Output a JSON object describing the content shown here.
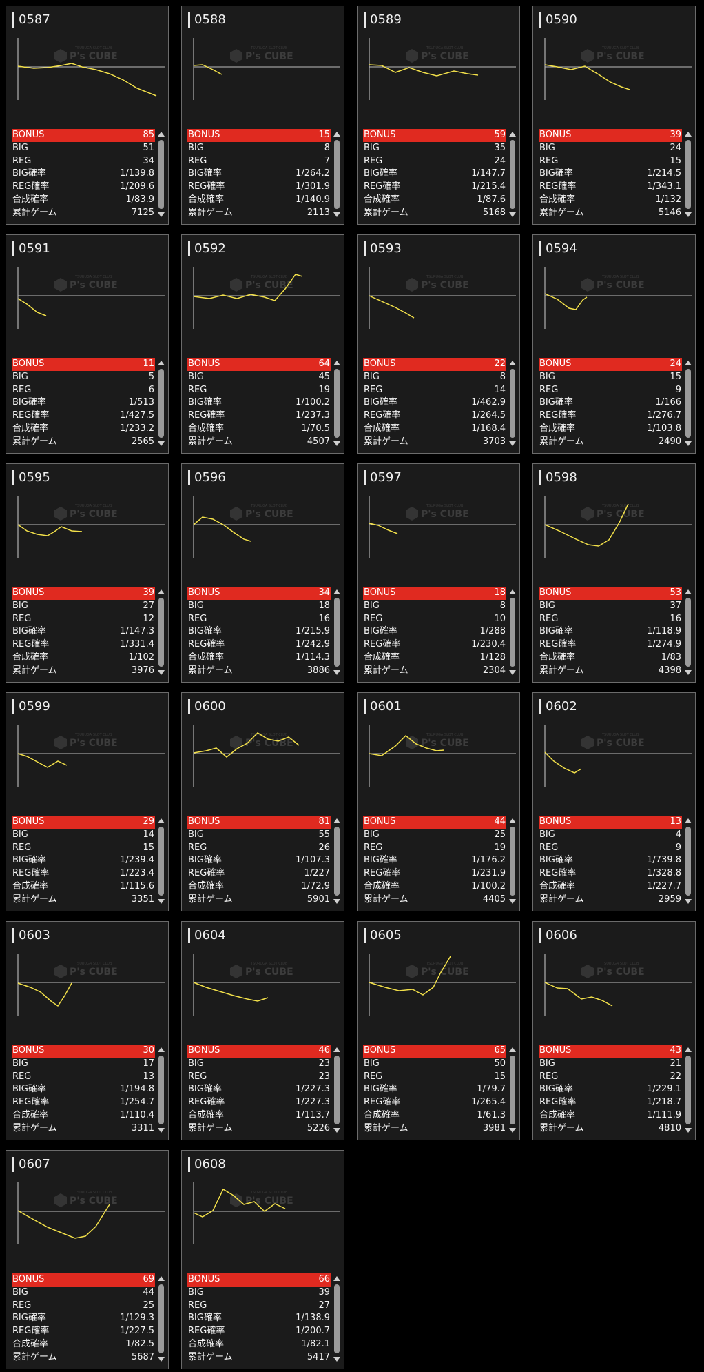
{
  "theme": {
    "accent": "#e02a20",
    "line": "#f2e04a",
    "card_bg": "#1b1b1b"
  },
  "logo": {
    "main": "P's CUBE",
    "sub": "TSURUGA SLOT CLUB"
  },
  "labels": {
    "bonus": "BONUS",
    "big": "BIG",
    "reg": "REG",
    "big_rate": "BIG確率",
    "reg_rate": "REG確率",
    "combined_rate": "合成確率",
    "total_games": "累計ゲーム"
  },
  "machines": [
    {
      "id": "0587",
      "bonus": "85",
      "big": "51",
      "reg": "34",
      "big_rate": "1/139.8",
      "reg_rate": "1/209.6",
      "combined_rate": "1/83.9",
      "total_games": "7125"
    },
    {
      "id": "0588",
      "bonus": "15",
      "big": "8",
      "reg": "7",
      "big_rate": "1/264.2",
      "reg_rate": "1/301.9",
      "combined_rate": "1/140.9",
      "total_games": "2113"
    },
    {
      "id": "0589",
      "bonus": "59",
      "big": "35",
      "reg": "24",
      "big_rate": "1/147.7",
      "reg_rate": "1/215.4",
      "combined_rate": "1/87.6",
      "total_games": "5168"
    },
    {
      "id": "0590",
      "bonus": "39",
      "big": "24",
      "reg": "15",
      "big_rate": "1/214.5",
      "reg_rate": "1/343.1",
      "combined_rate": "1/132",
      "total_games": "5146"
    },
    {
      "id": "0591",
      "bonus": "11",
      "big": "5",
      "reg": "6",
      "big_rate": "1/513",
      "reg_rate": "1/427.5",
      "combined_rate": "1/233.2",
      "total_games": "2565"
    },
    {
      "id": "0592",
      "bonus": "64",
      "big": "45",
      "reg": "19",
      "big_rate": "1/100.2",
      "reg_rate": "1/237.3",
      "combined_rate": "1/70.5",
      "total_games": "4507"
    },
    {
      "id": "0593",
      "bonus": "22",
      "big": "8",
      "reg": "14",
      "big_rate": "1/462.9",
      "reg_rate": "1/264.5",
      "combined_rate": "1/168.4",
      "total_games": "3703"
    },
    {
      "id": "0594",
      "bonus": "24",
      "big": "15",
      "reg": "9",
      "big_rate": "1/166",
      "reg_rate": "1/276.7",
      "combined_rate": "1/103.8",
      "total_games": "2490"
    },
    {
      "id": "0595",
      "bonus": "39",
      "big": "27",
      "reg": "12",
      "big_rate": "1/147.3",
      "reg_rate": "1/331.4",
      "combined_rate": "1/102",
      "total_games": "3976"
    },
    {
      "id": "0596",
      "bonus": "34",
      "big": "18",
      "reg": "16",
      "big_rate": "1/215.9",
      "reg_rate": "1/242.9",
      "combined_rate": "1/114.3",
      "total_games": "3886"
    },
    {
      "id": "0597",
      "bonus": "18",
      "big": "8",
      "reg": "10",
      "big_rate": "1/288",
      "reg_rate": "1/230.4",
      "combined_rate": "1/128",
      "total_games": "2304"
    },
    {
      "id": "0598",
      "bonus": "53",
      "big": "37",
      "reg": "16",
      "big_rate": "1/118.9",
      "reg_rate": "1/274.9",
      "combined_rate": "1/83",
      "total_games": "4398"
    },
    {
      "id": "0599",
      "bonus": "29",
      "big": "14",
      "reg": "15",
      "big_rate": "1/239.4",
      "reg_rate": "1/223.4",
      "combined_rate": "1/115.6",
      "total_games": "3351"
    },
    {
      "id": "0600",
      "bonus": "81",
      "big": "55",
      "reg": "26",
      "big_rate": "1/107.3",
      "reg_rate": "1/227",
      "combined_rate": "1/72.9",
      "total_games": "5901"
    },
    {
      "id": "0601",
      "bonus": "44",
      "big": "25",
      "reg": "19",
      "big_rate": "1/176.2",
      "reg_rate": "1/231.9",
      "combined_rate": "1/100.2",
      "total_games": "4405"
    },
    {
      "id": "0602",
      "bonus": "13",
      "big": "4",
      "reg": "9",
      "big_rate": "1/739.8",
      "reg_rate": "1/328.8",
      "combined_rate": "1/227.7",
      "total_games": "2959"
    },
    {
      "id": "0603",
      "bonus": "30",
      "big": "17",
      "reg": "13",
      "big_rate": "1/194.8",
      "reg_rate": "1/254.7",
      "combined_rate": "1/110.4",
      "total_games": "3311"
    },
    {
      "id": "0604",
      "bonus": "46",
      "big": "23",
      "reg": "23",
      "big_rate": "1/227.3",
      "reg_rate": "1/227.3",
      "combined_rate": "1/113.7",
      "total_games": "5226"
    },
    {
      "id": "0605",
      "bonus": "65",
      "big": "50",
      "reg": "15",
      "big_rate": "1/79.7",
      "reg_rate": "1/265.4",
      "combined_rate": "1/61.3",
      "total_games": "3981"
    },
    {
      "id": "0606",
      "bonus": "43",
      "big": "21",
      "reg": "22",
      "big_rate": "1/229.1",
      "reg_rate": "1/218.7",
      "combined_rate": "1/111.9",
      "total_games": "4810"
    },
    {
      "id": "0607",
      "bonus": "69",
      "big": "44",
      "reg": "25",
      "big_rate": "1/129.3",
      "reg_rate": "1/227.5",
      "combined_rate": "1/82.5",
      "total_games": "5687"
    },
    {
      "id": "0608",
      "bonus": "66",
      "big": "39",
      "reg": "27",
      "big_rate": "1/138.9",
      "reg_rate": "1/200.7",
      "combined_rate": "1/82.1",
      "total_games": "5417"
    }
  ]
}
